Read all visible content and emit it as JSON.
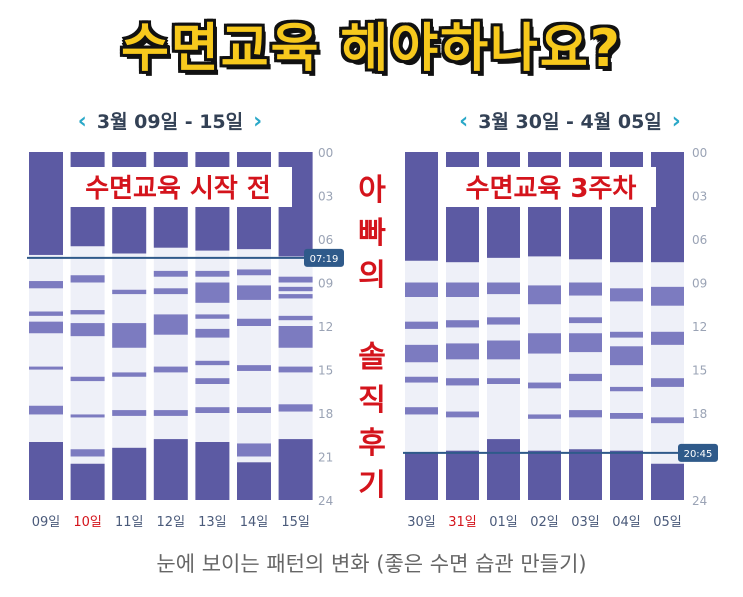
{
  "headline": "수면교육 해야하나요?",
  "vertical_note": [
    "아",
    "빠",
    "의",
    "솔",
    "직",
    "후",
    "기"
  ],
  "caption": "눈에 보이는 패턴의 변화 (좋은 수면 습관 만들기)",
  "colors": {
    "sleep_dark": "#5c5aa3",
    "sleep_light": "#7c7bc0",
    "awake": "#eef0f8",
    "marker": "#2f5a8a",
    "red_label": "#d4141c",
    "accent": "#2aa8c8"
  },
  "icons": {
    "prev": "chevron-left-icon",
    "next": "chevron-right-icon"
  },
  "chart_data": [
    {
      "type": "table",
      "range": "3월 09일 - 15일",
      "overlay": "수면교육 시작 전",
      "y_ticks": [
        "00",
        "03",
        "06",
        "09",
        "12",
        "15",
        "18",
        "21",
        "24"
      ],
      "ylim": [
        0,
        24
      ],
      "marker": {
        "label": "07:19",
        "hour": 7.3
      },
      "days": [
        {
          "label": "09일",
          "highlight": false,
          "sleep": [
            [
              0,
              7.1
            ],
            [
              8.9,
              9.4
            ],
            [
              11.0,
              11.3
            ],
            [
              11.7,
              12.5
            ],
            [
              14.8,
              15.0
            ],
            [
              17.5,
              18.1
            ],
            [
              20.0,
              24
            ]
          ]
        },
        {
          "label": "10일",
          "highlight": true,
          "sleep": [
            [
              0,
              6.5
            ],
            [
              8.5,
              9.0
            ],
            [
              10.9,
              11.2
            ],
            [
              11.8,
              12.7
            ],
            [
              15.5,
              15.8
            ],
            [
              18.1,
              18.3
            ],
            [
              20.5,
              21.0
            ],
            [
              21.5,
              24
            ]
          ]
        },
        {
          "label": "11일",
          "highlight": false,
          "sleep": [
            [
              0,
              7.0
            ],
            [
              9.5,
              9.8
            ],
            [
              11.8,
              13.5
            ],
            [
              15.2,
              15.5
            ],
            [
              17.8,
              18.2
            ],
            [
              20.4,
              24
            ]
          ]
        },
        {
          "label": "12일",
          "highlight": false,
          "sleep": [
            [
              0,
              6.6
            ],
            [
              8.2,
              8.6
            ],
            [
              9.4,
              9.8
            ],
            [
              11.2,
              12.6
            ],
            [
              14.8,
              15.2
            ],
            [
              17.8,
              18.2
            ],
            [
              19.8,
              24
            ]
          ]
        },
        {
          "label": "13일",
          "highlight": false,
          "sleep": [
            [
              0,
              6.8
            ],
            [
              8.2,
              8.6
            ],
            [
              9.0,
              10.4
            ],
            [
              11.2,
              11.5
            ],
            [
              12.2,
              12.8
            ],
            [
              14.4,
              14.7
            ],
            [
              15.6,
              16.0
            ],
            [
              17.6,
              18.0
            ],
            [
              20.0,
              24
            ]
          ]
        },
        {
          "label": "14일",
          "highlight": false,
          "sleep": [
            [
              0,
              6.7
            ],
            [
              8.1,
              8.5
            ],
            [
              9.2,
              10.2
            ],
            [
              11.5,
              12.0
            ],
            [
              14.7,
              15.1
            ],
            [
              17.6,
              18.0
            ],
            [
              20.1,
              21.0
            ],
            [
              21.4,
              24
            ]
          ]
        },
        {
          "label": "15일",
          "highlight": false,
          "sleep": [
            [
              0,
              7.2
            ],
            [
              8.6,
              9.0
            ],
            [
              9.3,
              9.6
            ],
            [
              9.8,
              10.1
            ],
            [
              11.3,
              11.6
            ],
            [
              12.0,
              13.5
            ],
            [
              14.8,
              15.2
            ],
            [
              17.4,
              17.9
            ],
            [
              19.8,
              24
            ]
          ]
        }
      ]
    },
    {
      "type": "table",
      "range": "3월 30일 - 4월 05일",
      "overlay": "수면교육 3주차",
      "y_ticks": [
        "00",
        "03",
        "06",
        "09",
        "12",
        "15",
        "18",
        "21",
        "24"
      ],
      "ylim": [
        0,
        24
      ],
      "marker": {
        "label": "20:45",
        "hour": 20.75
      },
      "days": [
        {
          "label": "30일",
          "highlight": false,
          "sleep": [
            [
              0,
              7.5
            ],
            [
              9.0,
              10.0
            ],
            [
              11.7,
              12.2
            ],
            [
              13.3,
              14.5
            ],
            [
              15.5,
              15.9
            ],
            [
              17.6,
              18.1
            ],
            [
              20.7,
              24
            ]
          ]
        },
        {
          "label": "31일",
          "highlight": true,
          "sleep": [
            [
              0,
              7.6
            ],
            [
              9.0,
              10.0
            ],
            [
              11.6,
              12.1
            ],
            [
              13.2,
              14.3
            ],
            [
              15.6,
              16.1
            ],
            [
              17.9,
              18.3
            ],
            [
              20.6,
              24
            ]
          ]
        },
        {
          "label": "01일",
          "highlight": false,
          "sleep": [
            [
              0,
              7.3
            ],
            [
              9.0,
              9.8
            ],
            [
              11.4,
              11.9
            ],
            [
              13.0,
              14.3
            ],
            [
              15.6,
              16.0
            ],
            [
              19.8,
              24
            ]
          ]
        },
        {
          "label": "02일",
          "highlight": false,
          "sleep": [
            [
              0,
              7.2
            ],
            [
              9.2,
              10.5
            ],
            [
              12.5,
              13.9
            ],
            [
              15.9,
              16.3
            ],
            [
              18.1,
              18.4
            ],
            [
              20.6,
              24
            ]
          ]
        },
        {
          "label": "03일",
          "highlight": false,
          "sleep": [
            [
              0,
              7.4
            ],
            [
              9.0,
              9.9
            ],
            [
              11.4,
              11.8
            ],
            [
              12.5,
              13.8
            ],
            [
              15.3,
              15.8
            ],
            [
              17.8,
              18.3
            ],
            [
              20.5,
              24
            ]
          ]
        },
        {
          "label": "04일",
          "highlight": false,
          "sleep": [
            [
              0,
              7.6
            ],
            [
              9.4,
              10.3
            ],
            [
              12.4,
              12.8
            ],
            [
              13.4,
              14.7
            ],
            [
              16.2,
              16.5
            ],
            [
              18.0,
              18.4
            ],
            [
              20.6,
              24
            ]
          ]
        },
        {
          "label": "05일",
          "highlight": false,
          "sleep": [
            [
              0,
              7.6
            ],
            [
              9.3,
              10.6
            ],
            [
              12.4,
              13.3
            ],
            [
              15.6,
              16.2
            ],
            [
              18.3,
              18.7
            ],
            [
              21.5,
              24
            ]
          ]
        }
      ]
    }
  ]
}
